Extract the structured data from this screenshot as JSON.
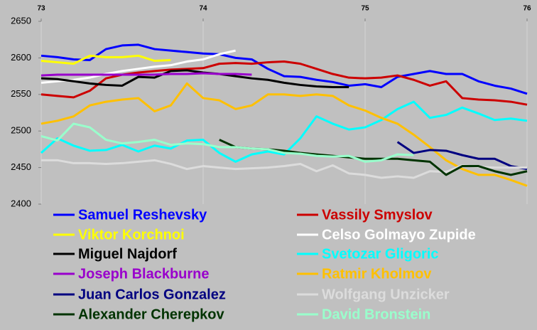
{
  "chart_data": {
    "type": "line",
    "x": [
      73,
      73.1,
      73.2,
      73.3,
      73.4,
      73.5,
      73.6,
      73.7,
      73.8,
      73.9,
      74,
      74.1,
      74.2,
      74.3,
      74.4,
      74.5,
      74.6,
      74.7,
      74.8,
      74.9,
      75,
      75.1,
      75.2,
      75.3,
      75.4,
      75.5,
      75.6,
      75.7,
      75.8,
      75.9,
      76
    ],
    "xlim": [
      73,
      76
    ],
    "xticks": [
      73,
      74,
      75,
      76
    ],
    "ylim": [
      2400,
      2650
    ],
    "yticks": [
      2400,
      2450,
      2500,
      2550,
      2600,
      2650
    ],
    "grid": true,
    "legend": "bottom",
    "series": [
      {
        "name": "Samuel Reshevsky",
        "color": "#0000ff",
        "values": [
          2603,
          2601,
          2598,
          2597,
          2612,
          2617,
          2618,
          2612,
          2610,
          2608,
          2606,
          2605,
          2600,
          2598,
          2585,
          2575,
          2574,
          2570,
          2567,
          2562,
          2564,
          2560,
          2574,
          2578,
          2582,
          2578,
          2578,
          2568,
          2562,
          2558,
          2551
        ]
      },
      {
        "name": "Vassily Smyslov",
        "color": "#cc0000",
        "values": [
          2550,
          2548,
          2546,
          2555,
          2572,
          2577,
          2580,
          2582,
          2584,
          2585,
          2586,
          2592,
          2593,
          2592,
          2594,
          2595,
          2592,
          2585,
          2578,
          2573,
          2572,
          2573,
          2576,
          2570,
          2562,
          2568,
          2545,
          2543,
          2542,
          2540,
          2536
        ]
      },
      {
        "name": "Viktor Korchnoi",
        "color": "#ffff00",
        "values": [
          2596,
          2594,
          2592,
          2603,
          2601,
          2601,
          2603,
          2596,
          2597,
          null,
          null,
          null,
          null,
          null,
          null,
          null,
          null,
          null,
          null,
          null,
          null,
          null,
          null,
          null,
          null,
          null,
          null,
          null,
          null,
          null,
          null
        ]
      },
      {
        "name": "Celso Golmayo Zupide",
        "color": "#ffffff",
        "values": [
          2566,
          2568,
          2570,
          2573,
          2578,
          2582,
          2585,
          2588,
          2590,
          2595,
          2598,
          2605,
          2610,
          null,
          null,
          null,
          null,
          null,
          null,
          null,
          null,
          null,
          null,
          null,
          null,
          null,
          null,
          null,
          null,
          null,
          null
        ]
      },
      {
        "name": "Miguel Najdorf",
        "color": "#000000",
        "values": [
          2572,
          2571,
          2568,
          2565,
          2563,
          2562,
          2574,
          2573,
          2582,
          2583,
          2580,
          2578,
          2575,
          2572,
          2570,
          2566,
          2563,
          2561,
          2560,
          2560,
          null,
          null,
          null,
          null,
          null,
          null,
          null,
          null,
          null,
          null,
          null
        ]
      },
      {
        "name": "Svetozar Gligoric",
        "color": "#00ffff",
        "values": [
          2470,
          2490,
          2480,
          2473,
          2474,
          2481,
          2472,
          2480,
          2476,
          2487,
          2488,
          2470,
          2458,
          2468,
          2472,
          2468,
          2490,
          2520,
          2510,
          2502,
          2505,
          2515,
          2530,
          2540,
          2518,
          2522,
          2532,
          2524,
          2515,
          2517,
          2514
        ]
      },
      {
        "name": "Joseph Blackburne",
        "color": "#9900cc",
        "values": [
          2576,
          2577,
          2577,
          2577,
          2577,
          2577,
          2577,
          2577,
          2578,
          2578,
          2579,
          2578,
          2578,
          2577,
          null,
          null,
          null,
          null,
          null,
          null,
          null,
          null,
          null,
          null,
          null,
          null,
          null,
          null,
          null,
          null,
          null
        ]
      },
      {
        "name": "Ratmir Kholmov",
        "color": "#ffc000",
        "values": [
          2510,
          2514,
          2520,
          2535,
          2540,
          2543,
          2545,
          2527,
          2535,
          2565,
          2545,
          2542,
          2530,
          2535,
          2550,
          2550,
          2548,
          2550,
          2548,
          2535,
          2528,
          2518,
          2510,
          2495,
          2478,
          2460,
          2448,
          2440,
          2440,
          2433,
          2425
        ]
      },
      {
        "name": "Juan Carlos Gonzalez",
        "color": "#000080",
        "values": [
          null,
          null,
          null,
          null,
          null,
          null,
          null,
          null,
          null,
          null,
          null,
          null,
          null,
          null,
          null,
          null,
          null,
          null,
          null,
          null,
          null,
          null,
          2485,
          2470,
          2474,
          2473,
          2467,
          2462,
          2462,
          2452,
          2448
        ]
      },
      {
        "name": "Wolfgang Unzicker",
        "color": "#dcdcdc",
        "values": [
          2460,
          2460,
          2456,
          2456,
          2455,
          2456,
          2458,
          2460,
          2455,
          2448,
          2452,
          2450,
          2448,
          2449,
          2450,
          2452,
          2455,
          2445,
          2453,
          2442,
          2440,
          2436,
          2438,
          2436,
          2445,
          2444,
          2453,
          2451,
          2450,
          2450,
          2450
        ]
      },
      {
        "name": "Alexander Cherepkov",
        "color": "#003300",
        "values": [
          null,
          null,
          null,
          null,
          null,
          null,
          null,
          null,
          null,
          null,
          null,
          2488,
          2478,
          2476,
          2475,
          2473,
          2470,
          2468,
          2466,
          2464,
          2462,
          2462,
          2462,
          2460,
          2458,
          2440,
          2452,
          2452,
          2445,
          2440,
          2445
        ]
      },
      {
        "name": "David Bronstein",
        "color": "#99ffcc",
        "values": [
          2493,
          2487,
          2510,
          2505,
          2488,
          2483,
          2485,
          2488,
          2481,
          2483,
          2482,
          2478,
          2478,
          2476,
          2475,
          2470,
          2469,
          2466,
          2465,
          2466,
          2458,
          2460,
          2468,
          2467,
          null,
          null,
          null,
          null,
          null,
          null,
          null
        ]
      }
    ]
  }
}
